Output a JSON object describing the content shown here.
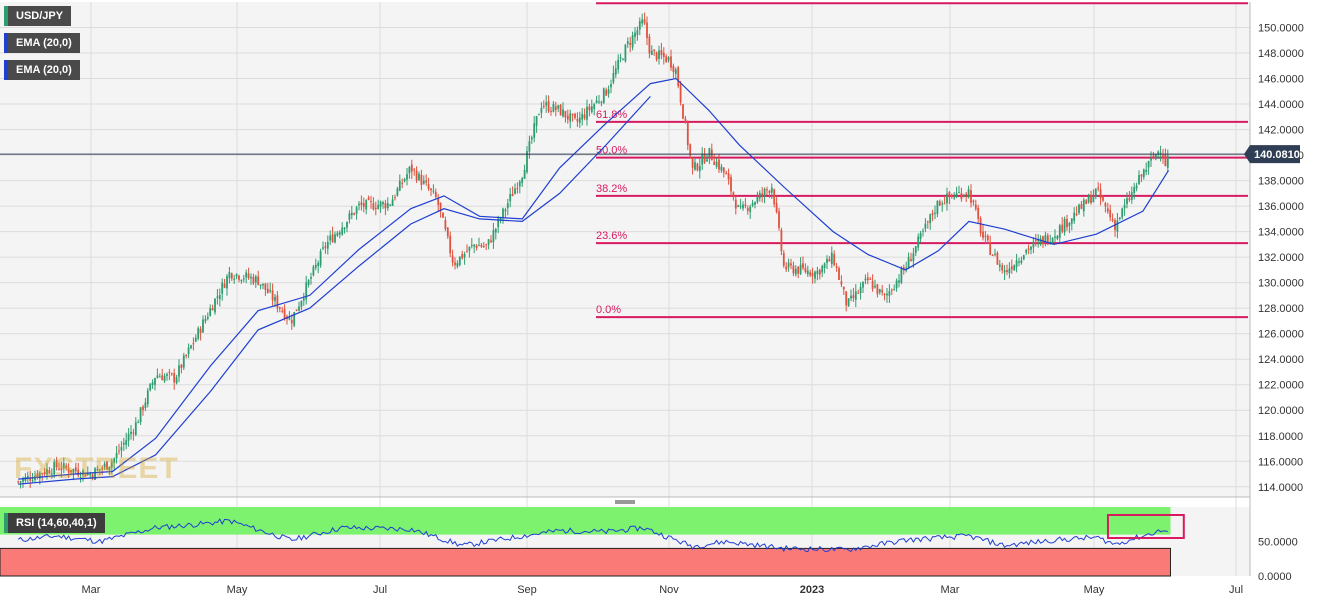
{
  "symbol": "USD/JPY",
  "indicators": [
    "EMA (20,0)",
    "EMA (20,0)"
  ],
  "rsi_label": "RSI (14,60,40,1)",
  "last_price": "140.0810",
  "colors": {
    "up": "#2e9c6e",
    "down": "#e0523f",
    "ema": "#1f3fd1",
    "fib": "#d81b60",
    "rsi_line": "#1f3fd1",
    "rsi_high_zone": "#7cf26e",
    "rsi_low_zone": "#fa7a78",
    "price_tag": "#2f3d55",
    "panel_label": "#4a4a4a"
  },
  "chart_data": [
    {
      "type": "candlestick",
      "title": "USD/JPY",
      "x_ticks": [
        "Mar",
        "May",
        "Jul",
        "Sep",
        "Nov",
        "2023",
        "Mar",
        "May",
        "Jul"
      ],
      "y_ticks": [
        "114.0000",
        "116.0000",
        "118.0000",
        "120.0000",
        "122.0000",
        "124.0000",
        "126.0000",
        "128.0000",
        "130.0000",
        "132.0000",
        "134.0000",
        "136.0000",
        "138.0000",
        "140.0000",
        "142.0000",
        "144.0000",
        "146.0000",
        "148.0000",
        "150.0000"
      ],
      "ylim": [
        113.2,
        152.0
      ],
      "grid": true,
      "series": [
        {
          "name": "USD/JPY",
          "kind": "close_trace",
          "points": [
            [
              "2022-01-20",
              114.4
            ],
            [
              "2022-02-10",
              115.6
            ],
            [
              "2022-03-01",
              115.0
            ],
            [
              "2022-03-10",
              116.0
            ],
            [
              "2022-03-20",
              119.0
            ],
            [
              "2022-03-28",
              122.8
            ],
            [
              "2022-04-05",
              122.5
            ],
            [
              "2022-04-20",
              128.0
            ],
            [
              "2022-04-28",
              130.8
            ],
            [
              "2022-05-10",
              130.2
            ],
            [
              "2022-05-24",
              127.0
            ],
            [
              "2022-06-08",
              133.0
            ],
            [
              "2022-06-15",
              134.5
            ],
            [
              "2022-06-22",
              136.0
            ],
            [
              "2022-07-05",
              136.2
            ],
            [
              "2022-07-14",
              139.0
            ],
            [
              "2022-07-25",
              136.5
            ],
            [
              "2022-08-01",
              131.5
            ],
            [
              "2022-08-10",
              133.0
            ],
            [
              "2022-08-15",
              132.8
            ],
            [
              "2022-08-30",
              138.6
            ],
            [
              "2022-09-07",
              144.0
            ],
            [
              "2022-09-15",
              143.5
            ],
            [
              "2022-09-22",
              142.5
            ],
            [
              "2022-10-05",
              145.0
            ],
            [
              "2022-10-14",
              148.6
            ],
            [
              "2022-10-21",
              150.5
            ],
            [
              "2022-10-24",
              148.0
            ],
            [
              "2022-11-01",
              147.5
            ],
            [
              "2022-11-04",
              146.6
            ],
            [
              "2022-11-11",
              138.8
            ],
            [
              "2022-11-18",
              140.2
            ],
            [
              "2022-11-25",
              138.5
            ],
            [
              "2022-12-01",
              135.5
            ],
            [
              "2022-12-10",
              136.8
            ],
            [
              "2022-12-15",
              137.6
            ],
            [
              "2022-12-20",
              131.2
            ],
            [
              "2023-01-03",
              130.8
            ],
            [
              "2023-01-10",
              132.0
            ],
            [
              "2023-01-16",
              128.2
            ],
            [
              "2023-01-25",
              130.2
            ],
            [
              "2023-02-01",
              128.8
            ],
            [
              "2023-02-10",
              131.2
            ],
            [
              "2023-02-24",
              136.3
            ],
            [
              "2023-03-02",
              136.8
            ],
            [
              "2023-03-09",
              137.2
            ],
            [
              "2023-03-15",
              133.5
            ],
            [
              "2023-03-24",
              130.8
            ],
            [
              "2023-04-03",
              132.7
            ],
            [
              "2023-04-14",
              133.8
            ],
            [
              "2023-04-28",
              136.3
            ],
            [
              "2023-05-02",
              137.2
            ],
            [
              "2023-05-10",
              134.5
            ],
            [
              "2023-05-22",
              138.6
            ],
            [
              "2023-05-30",
              140.7
            ],
            [
              "2023-06-01",
              139.1
            ],
            [
              "2023-06-02",
              140.08
            ]
          ]
        },
        {
          "name": "EMA (20,0)",
          "kind": "ema_fast",
          "points": [
            [
              "2022-01-20",
              114.6
            ],
            [
              "2022-02-20",
              115.0
            ],
            [
              "2022-03-10",
              115.2
            ],
            [
              "2022-03-28",
              117.8
            ],
            [
              "2022-04-20",
              123.5
            ],
            [
              "2022-05-10",
              127.8
            ],
            [
              "2022-06-01",
              129.0
            ],
            [
              "2022-06-22",
              132.6
            ],
            [
              "2022-07-14",
              135.8
            ],
            [
              "2022-07-28",
              136.8
            ],
            [
              "2022-08-12",
              135.2
            ],
            [
              "2022-08-30",
              135.0
            ],
            [
              "2022-09-15",
              139.0
            ],
            [
              "2022-10-05",
              142.5
            ],
            [
              "2022-10-24",
              145.6
            ],
            [
              "2022-11-04",
              146.0
            ],
            [
              "2022-11-18",
              143.5
            ],
            [
              "2022-12-01",
              140.8
            ],
            [
              "2022-12-20",
              137.5
            ],
            [
              "2023-01-10",
              134.0
            ],
            [
              "2023-01-25",
              132.2
            ],
            [
              "2023-02-10",
              131.0
            ],
            [
              "2023-02-24",
              132.5
            ],
            [
              "2023-03-09",
              134.8
            ],
            [
              "2023-03-24",
              134.2
            ],
            [
              "2023-04-14",
              133.0
            ],
            [
              "2023-05-02",
              133.8
            ],
            [
              "2023-05-22",
              135.6
            ],
            [
              "2023-06-02",
              138.8
            ]
          ]
        },
        {
          "name": "EMA (20,0)",
          "kind": "ema_slow",
          "points": [
            [
              "2022-01-20",
              114.2
            ],
            [
              "2022-02-20",
              114.6
            ],
            [
              "2022-03-10",
              114.8
            ],
            [
              "2022-03-28",
              116.5
            ],
            [
              "2022-04-20",
              121.5
            ],
            [
              "2022-05-10",
              126.3
            ],
            [
              "2022-06-01",
              128.0
            ],
            [
              "2022-06-22",
              131.3
            ],
            [
              "2022-07-14",
              134.6
            ],
            [
              "2022-07-28",
              135.8
            ],
            [
              "2022-08-12",
              135.0
            ],
            [
              "2022-08-30",
              134.8
            ],
            [
              "2022-09-15",
              137.0
            ],
            [
              "2022-10-05",
              140.8
            ],
            [
              "2022-10-24",
              144.6
            ]
          ]
        }
      ],
      "fibonacci": [
        {
          "label": "0.0%",
          "value": 127.3
        },
        {
          "label": "23.6%",
          "value": 133.1
        },
        {
          "label": "38.2%",
          "value": 136.8
        },
        {
          "label": "50.0%",
          "value": 139.8
        },
        {
          "label": "61.8%",
          "value": 142.6
        }
      ],
      "fib_top": 151.9,
      "last_price_line": 140.08
    },
    {
      "type": "line",
      "title": "RSI (14,60,40,1)",
      "y_ticks": [
        "0.0000",
        "50.0000"
      ],
      "ylim": [
        0,
        100
      ],
      "upper_band": 60,
      "lower_band": 40,
      "series": [
        {
          "name": "RSI (14,60,40,1)",
          "points": [
            [
              "2022-01-20",
              52
            ],
            [
              "2022-02-10",
              58
            ],
            [
              "2022-03-05",
              50
            ],
            [
              "2022-03-28",
              70
            ],
            [
              "2022-04-15",
              75
            ],
            [
              "2022-04-28",
              80
            ],
            [
              "2022-05-24",
              52
            ],
            [
              "2022-06-15",
              70
            ],
            [
              "2022-07-14",
              68
            ],
            [
              "2022-08-05",
              44
            ],
            [
              "2022-08-30",
              58
            ],
            [
              "2022-09-15",
              66
            ],
            [
              "2022-10-05",
              64
            ],
            [
              "2022-10-21",
              70
            ],
            [
              "2022-11-11",
              43
            ],
            [
              "2022-11-25",
              50
            ],
            [
              "2022-12-20",
              40
            ],
            [
              "2023-01-16",
              38
            ],
            [
              "2023-02-10",
              52
            ],
            [
              "2023-03-09",
              58
            ],
            [
              "2023-03-24",
              44
            ],
            [
              "2023-04-14",
              52
            ],
            [
              "2023-05-02",
              56
            ],
            [
              "2023-05-10",
              46
            ],
            [
              "2023-05-30",
              66
            ],
            [
              "2023-06-02",
              64
            ]
          ]
        }
      ]
    }
  ]
}
